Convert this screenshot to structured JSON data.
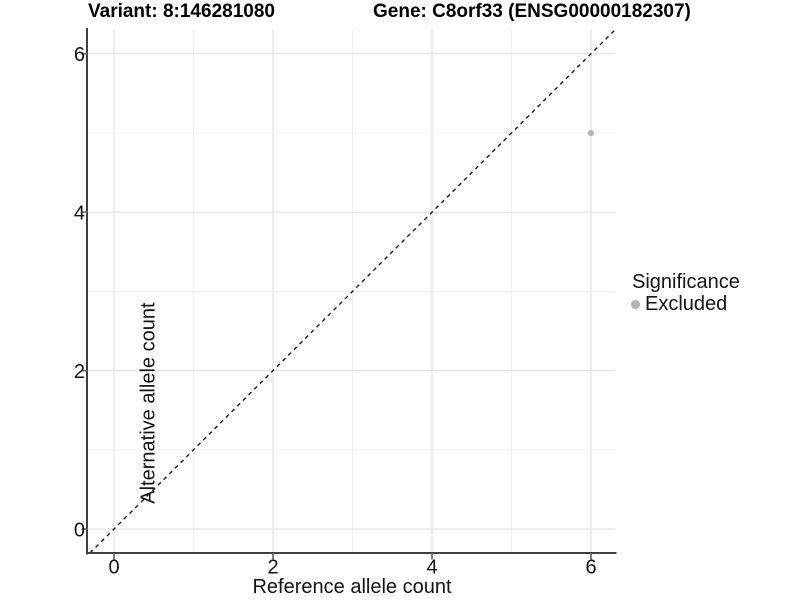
{
  "chart_data": {
    "type": "scatter",
    "title_left": "Variant: 8:146281080",
    "title_right": "Gene: C8orf33 (ENSG00000182307)",
    "xlabel": "Reference allele count",
    "ylabel": "Alternative allele count",
    "x_ticks": [
      0,
      2,
      4,
      6
    ],
    "y_ticks": [
      0,
      2,
      4,
      6
    ],
    "x_minor_ticks": [
      1,
      3,
      5
    ],
    "y_minor_ticks": [
      1,
      3,
      5
    ],
    "xlim": [
      -0.327,
      6.308
    ],
    "ylim": [
      -0.303,
      6.313
    ],
    "grid": true,
    "identity_line": {
      "style": "dashed",
      "slope": 1,
      "intercept": 0,
      "color": "#1a1a1a"
    },
    "points": [
      {
        "x": 6,
        "y": 5,
        "series": "Excluded",
        "color": "#b3b3b3"
      }
    ],
    "legend": {
      "title": "Significance",
      "position": "right",
      "entries": [
        {
          "label": "Excluded",
          "color": "#b3b3b3",
          "marker": "circle"
        }
      ]
    }
  },
  "colors": {
    "background": "#ffffff",
    "grid_major": "#e3e3e3",
    "grid_minor": "#f0f0f0",
    "axis_line": "#3f3f3f",
    "tick_mark": "#6e6e6e",
    "text": "#141414"
  }
}
